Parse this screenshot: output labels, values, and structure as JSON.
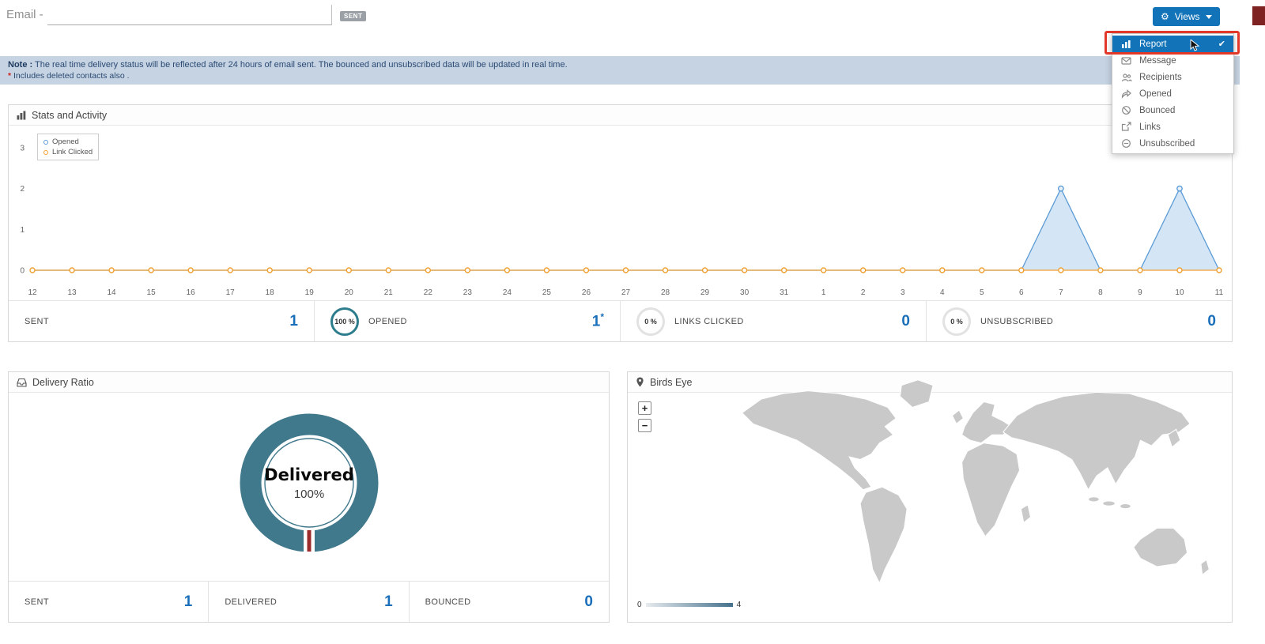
{
  "header": {
    "email_label": "Email -",
    "email_value": "",
    "sent_badge": "SENT",
    "views_label": "Views"
  },
  "views_menu": {
    "items": [
      {
        "label": "Report",
        "icon": "report-icon",
        "selected": true
      },
      {
        "label": "Message",
        "icon": "message-icon",
        "selected": false
      },
      {
        "label": "Recipients",
        "icon": "recipients-icon",
        "selected": false
      },
      {
        "label": "Opened",
        "icon": "opened-icon",
        "selected": false
      },
      {
        "label": "Bounced",
        "icon": "bounced-icon",
        "selected": false
      },
      {
        "label": "Links",
        "icon": "links-icon",
        "selected": false
      },
      {
        "label": "Unsubscribed",
        "icon": "unsubscribed-icon",
        "selected": false
      }
    ],
    "check_mark": "✔"
  },
  "note": {
    "label": "Note :",
    "text": "The real time delivery status will be reflected after 24 hours of email sent. The bounced and unsubscribed data will be updated in real time.",
    "star": "*",
    "subtext": "Includes deleted contacts also ."
  },
  "stats_panel": {
    "title": "Stats and Activity",
    "summary": {
      "sent": {
        "label": "SENT",
        "value": "1"
      },
      "opened": {
        "label": "OPENED",
        "value": "1",
        "suffix": "*",
        "percent": "100 %"
      },
      "links": {
        "label": "LINKS CLICKED",
        "value": "0",
        "percent": "0 %"
      },
      "unsub": {
        "label": "UNSUBSCRIBED",
        "value": "0",
        "percent": "0 %"
      }
    }
  },
  "delivery": {
    "title": "Delivery Ratio",
    "center_label": "Delivered",
    "center_percent": "100%",
    "sent": {
      "label": "SENT",
      "value": "1"
    },
    "delivered": {
      "label": "DELIVERED",
      "value": "1"
    },
    "bounced": {
      "label": "BOUNCED",
      "value": "0"
    }
  },
  "birds_eye": {
    "title": "Birds Eye",
    "zoom_in": "+",
    "zoom_out": "−",
    "legend_min": "0",
    "legend_max": "4"
  },
  "chart_data": [
    {
      "type": "line",
      "title": "Stats and Activity",
      "x": [
        "12",
        "13",
        "14",
        "15",
        "16",
        "17",
        "18",
        "19",
        "20",
        "21",
        "22",
        "23",
        "24",
        "25",
        "26",
        "27",
        "28",
        "29",
        "30",
        "31",
        "1",
        "2",
        "3",
        "4",
        "5",
        "6",
        "7",
        "8",
        "9",
        "10",
        "11"
      ],
      "series": [
        {
          "name": "Opened",
          "color": "#5b9bd5",
          "fill": "rgba(160,198,235,0.45)",
          "values": [
            0,
            0,
            0,
            0,
            0,
            0,
            0,
            0,
            0,
            0,
            0,
            0,
            0,
            0,
            0,
            0,
            0,
            0,
            0,
            0,
            0,
            0,
            0,
            0,
            0,
            0,
            2,
            0,
            0,
            2,
            0
          ]
        },
        {
          "name": "Link Clicked",
          "color": "#f0a030",
          "values": [
            0,
            0,
            0,
            0,
            0,
            0,
            0,
            0,
            0,
            0,
            0,
            0,
            0,
            0,
            0,
            0,
            0,
            0,
            0,
            0,
            0,
            0,
            0,
            0,
            0,
            0,
            0,
            0,
            0,
            0,
            0
          ]
        }
      ],
      "ylim": [
        0,
        3
      ],
      "yticks": [
        0,
        1,
        2,
        3
      ],
      "grid": false,
      "legend_position": "top-left"
    },
    {
      "type": "donut",
      "center_label": "Delivered",
      "center_value": "100%",
      "slices": [
        {
          "label": "Delivered",
          "value": 100,
          "color": "#41798c"
        },
        {
          "label": "Bounced",
          "value": 0,
          "color": "#a83232"
        }
      ],
      "legend_range": [
        0,
        4
      ]
    }
  ]
}
